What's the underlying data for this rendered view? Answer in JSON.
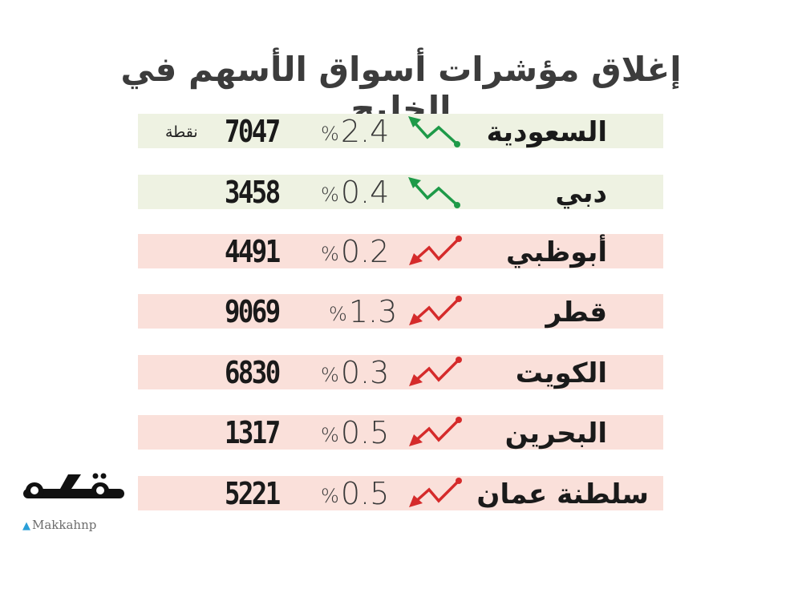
{
  "title": "إغلاق مؤشرات أسواق الأسهم في الخليج",
  "unit_label": "نقطة",
  "colors": {
    "up": "#1e9a48",
    "down": "#d52b2b",
    "up_row": "#eef2e2",
    "down_row": "#fae0da"
  },
  "markets": [
    {
      "name": "السعودية",
      "change": "2.4",
      "value": "7047",
      "direction": "up"
    },
    {
      "name": "دبي",
      "change": "0.4",
      "value": "3458",
      "direction": "up"
    },
    {
      "name": "أبوظبي",
      "change": "0.2",
      "value": "4491",
      "direction": "down"
    },
    {
      "name": "قطر",
      "change": "1.3",
      "value": "9069",
      "direction": "down"
    },
    {
      "name": "الكويت",
      "change": "0.3",
      "value": "6830",
      "direction": "down"
    },
    {
      "name": "البحرين",
      "change": "0.5",
      "value": "1317",
      "direction": "down"
    },
    {
      "name": "سلطنة عمان",
      "change": "0.5",
      "value": "5221",
      "direction": "down"
    }
  ],
  "percent_sign": "%",
  "logo": {
    "text": "مكة",
    "handle": "Makkahnp",
    "twitter_icon": "bird-icon"
  }
}
